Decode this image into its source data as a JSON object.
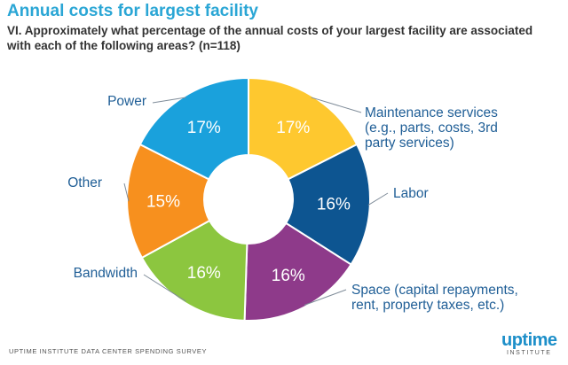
{
  "header": {
    "title": "Annual costs for largest facility",
    "question": "VI. Approximately what percentage of the annual costs of your largest facility are associated with each of the following areas? (n=118)"
  },
  "chart_data": {
    "type": "pie",
    "variant": "donut",
    "slices": [
      {
        "label": [
          "Maintenance services",
          "(e.g., parts, costs, 3rd",
          "party services)"
        ],
        "value": 17,
        "display": "17%",
        "color": "#fec82f"
      },
      {
        "label": [
          "Labor"
        ],
        "value": 16,
        "display": "16%",
        "color": "#0d5591"
      },
      {
        "label": [
          "Space (capital repayments,",
          "rent, property taxes, etc.)"
        ],
        "value": 16,
        "display": "16%",
        "color": "#8e3a8a"
      },
      {
        "label": [
          "Bandwidth"
        ],
        "value": 16,
        "display": "16%",
        "color": "#8cc63f"
      },
      {
        "label": [
          "Other"
        ],
        "value": 15,
        "display": "15%",
        "color": "#f7901e"
      },
      {
        "label": [
          "Power"
        ],
        "value": 17,
        "display": "17%",
        "color": "#1aa1dc"
      }
    ],
    "label_color": "#1f5e96"
  },
  "footer": {
    "source": "UPTIME INSTITUTE DATA CENTER SPENDING SURVEY",
    "logo_main": "uptime",
    "logo_sub": "INSTITUTE"
  }
}
